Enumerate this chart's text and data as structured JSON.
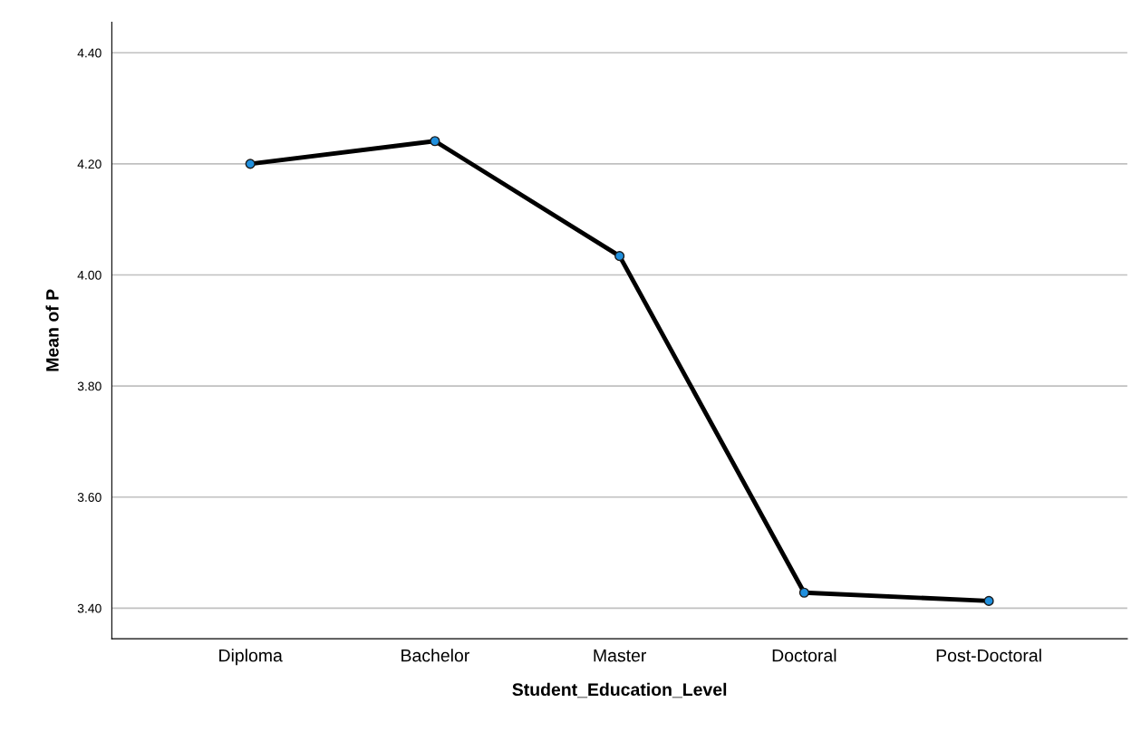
{
  "chart_data": {
    "type": "line",
    "xlabel": "Student_Education_Level",
    "ylabel": "Mean of P",
    "categories": [
      "Diploma",
      "Bachelor",
      "Master",
      "Doctoral",
      "Post-Doctoral"
    ],
    "series": [
      {
        "color": "#000000",
        "values": [
          4.2,
          4.241,
          4.034,
          3.428,
          3.413
        ]
      }
    ],
    "ylim": [
      3.345,
      4.455
    ],
    "yticks": [
      {
        "value": 3.4,
        "label": "3.40"
      },
      {
        "value": 3.6,
        "label": "3.60"
      },
      {
        "value": 3.8,
        "label": "3.80"
      },
      {
        "value": 4.0,
        "label": "4.00"
      },
      {
        "value": 4.2,
        "label": "4.20"
      },
      {
        "value": 4.4,
        "label": "4.40"
      }
    ],
    "grid": "y",
    "marker": "circle",
    "line_style": "solid"
  }
}
